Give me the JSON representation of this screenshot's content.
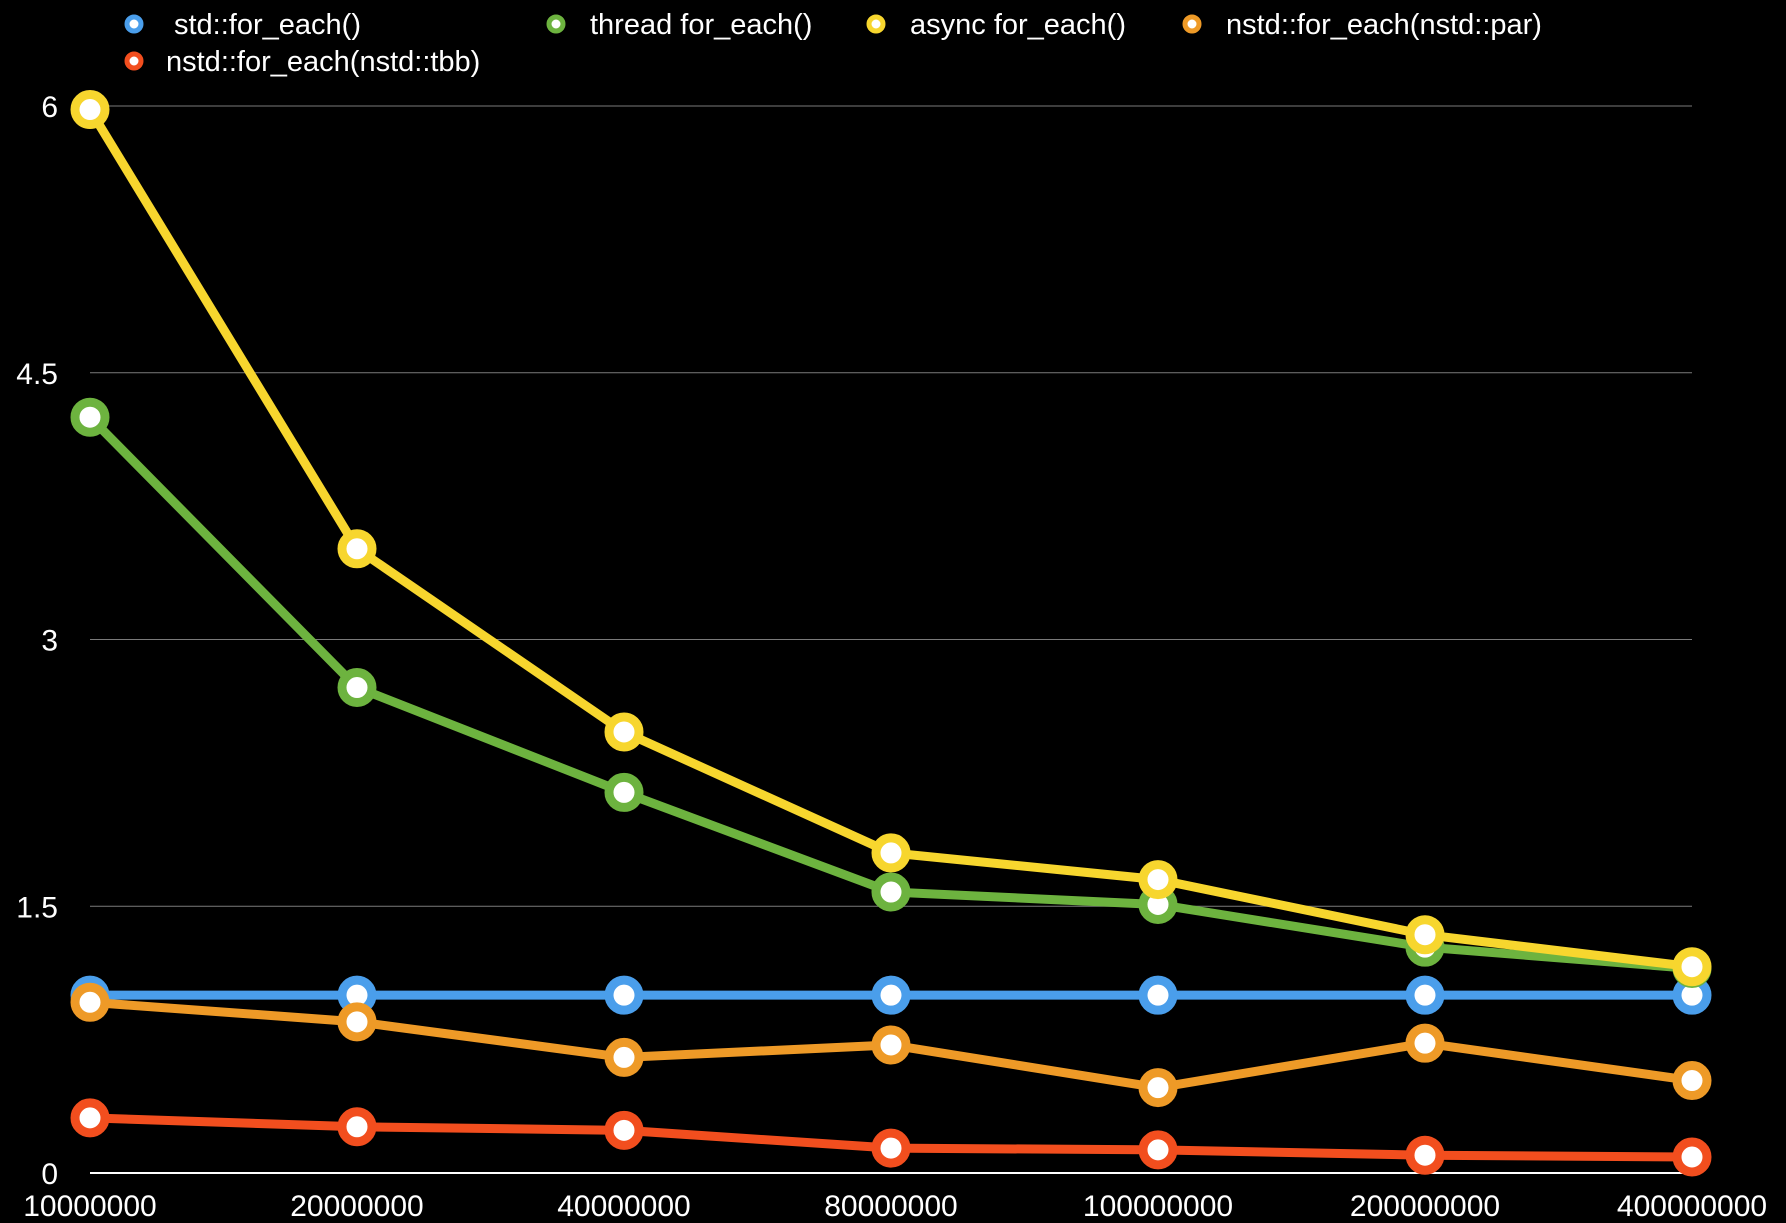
{
  "chart_data": {
    "type": "line",
    "categories": [
      "10000000",
      "20000000",
      "40000000",
      "80000000",
      "100000000",
      "200000000",
      "400000000"
    ],
    "ylim": [
      0,
      6
    ],
    "yticks": [
      "0",
      "1.5",
      "3",
      "4.5",
      "6"
    ],
    "ytick_values": [
      0,
      1.5,
      3,
      4.5,
      6
    ],
    "grid": true,
    "legend_position": "top",
    "background": "#000000",
    "series": [
      {
        "name": "std::for_each()",
        "color": "#4A9EEB",
        "values": [
          1.0,
          1.0,
          1.0,
          1.0,
          1.0,
          1.0,
          1.0
        ]
      },
      {
        "name": "thread for_each()",
        "color": "#6DB33F",
        "values": [
          4.25,
          2.73,
          2.14,
          1.58,
          1.51,
          1.27,
          1.15
        ]
      },
      {
        "name": "async for_each()",
        "color": "#F7D62E",
        "values": [
          5.98,
          3.51,
          2.48,
          1.8,
          1.65,
          1.34,
          1.16
        ]
      },
      {
        "name": "nstd::for_each(nstd::par)",
        "color": "#EE9A27",
        "values": [
          0.96,
          0.85,
          0.65,
          0.72,
          0.48,
          0.73,
          0.52
        ]
      },
      {
        "name": "nstd::for_each(nstd::tbb)",
        "color": "#F24E1E",
        "values": [
          0.31,
          0.26,
          0.24,
          0.14,
          0.13,
          0.1,
          0.09
        ]
      }
    ]
  }
}
